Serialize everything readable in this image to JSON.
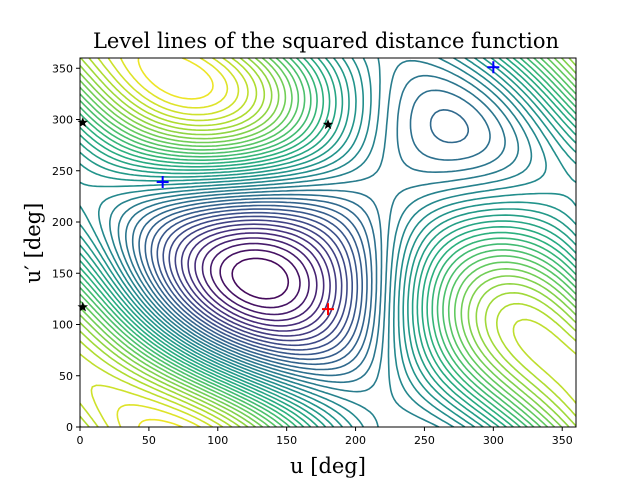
{
  "chart_data": {
    "type": "contour",
    "title": "Level lines of the squared distance function",
    "xlabel": "u [deg]",
    "ylabel": "u′ [deg]",
    "xlim": [
      0,
      360
    ],
    "ylim": [
      0,
      360
    ],
    "xticks": [
      0,
      50,
      100,
      150,
      200,
      250,
      300,
      350
    ],
    "yticks": [
      0,
      50,
      100,
      150,
      200,
      250,
      300,
      350
    ],
    "grid": false,
    "colormap": "viridis",
    "contour_levels": 40,
    "markers": [
      {
        "kind": "plus",
        "color": "#ff0000",
        "u": 180,
        "u_prime": 115
      },
      {
        "kind": "plus",
        "color": "#0000ff",
        "u": 60,
        "u_prime": 239
      },
      {
        "kind": "plus",
        "color": "#0000ff",
        "u": 300,
        "u_prime": 351
      },
      {
        "kind": "star",
        "color": "#000000",
        "u": 180,
        "u_prime": 295
      },
      {
        "kind": "star",
        "color": "#000000",
        "u": 2,
        "u_prime": 297
      },
      {
        "kind": "star",
        "color": "#000000",
        "u": 2,
        "u_prime": 117
      }
    ]
  }
}
